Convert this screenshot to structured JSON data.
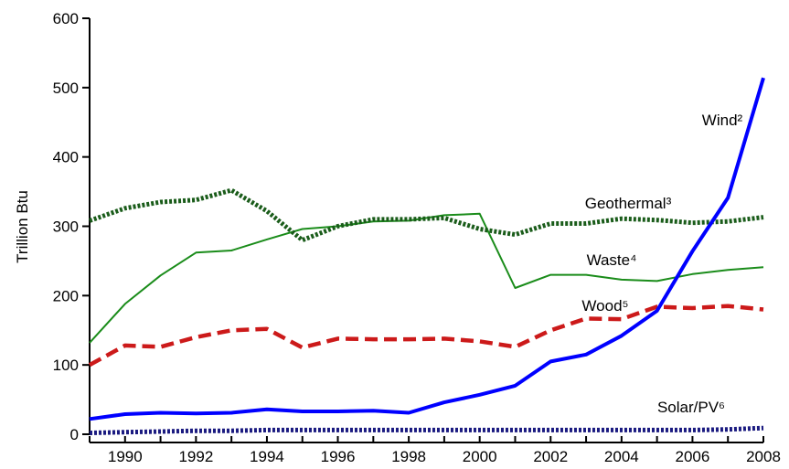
{
  "chart_data": {
    "type": "line",
    "ylabel": "Trillion Btu",
    "ylim": [
      0,
      600
    ],
    "xlim": [
      1989,
      2008
    ],
    "yticks": [
      0,
      100,
      200,
      300,
      400,
      500,
      600
    ],
    "xticks": [
      1990,
      1992,
      1994,
      1996,
      1998,
      2000,
      2002,
      2004,
      2006,
      2008
    ],
    "grid": false,
    "legend": "none (series labeled inline)",
    "x": [
      1989,
      1990,
      1991,
      1992,
      1993,
      1994,
      1995,
      1996,
      1997,
      1998,
      1999,
      2000,
      2001,
      2002,
      2003,
      2004,
      2005,
      2006,
      2007,
      2008
    ],
    "series": [
      {
        "name": "Wind²",
        "color": "#0000ff",
        "style": "solid-thick",
        "values": [
          22,
          29,
          31,
          30,
          31,
          36,
          33,
          33,
          34,
          31,
          46,
          57,
          70,
          105,
          115,
          142,
          178,
          264,
          341,
          514
        ]
      },
      {
        "name": "Geothermal³",
        "color": "#1a5c1a",
        "style": "dotted-thick",
        "values": [
          308,
          326,
          335,
          338,
          352,
          322,
          280,
          300,
          310,
          310,
          312,
          296,
          288,
          304,
          304,
          311,
          309,
          305,
          307,
          313
        ]
      },
      {
        "name": "Waste⁴",
        "color": "#1a8c1a",
        "style": "solid-thin",
        "values": [
          132,
          188,
          229,
          262,
          265,
          281,
          296,
          300,
          307,
          308,
          316,
          318,
          211,
          230,
          230,
          223,
          221,
          231,
          237,
          241
        ]
      },
      {
        "name": "Wood⁵",
        "color": "#cc1a1a",
        "style": "dashed-thick",
        "values": [
          100,
          128,
          126,
          140,
          150,
          152,
          125,
          138,
          137,
          137,
          138,
          134,
          126,
          150,
          167,
          166,
          184,
          182,
          185,
          180
        ]
      },
      {
        "name": "Solar/PV⁶",
        "color": "#1a1a80",
        "style": "dotted-thick",
        "values": [
          2,
          3,
          4,
          5,
          5,
          6,
          6,
          6,
          6,
          6,
          6,
          6,
          6,
          6,
          6,
          6,
          6,
          6,
          7,
          9
        ]
      }
    ]
  }
}
